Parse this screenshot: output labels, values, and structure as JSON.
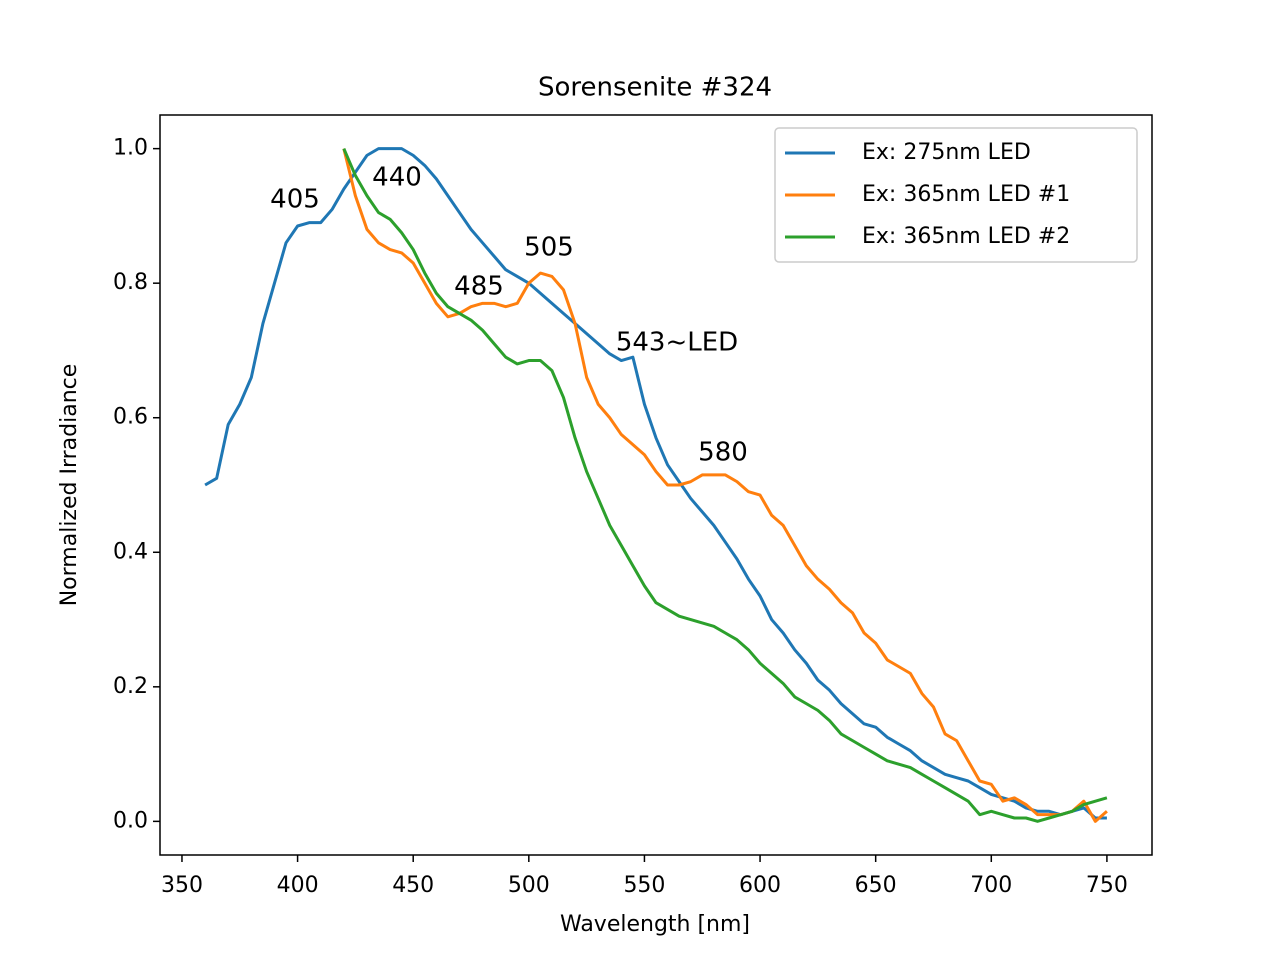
{
  "chart_data": {
    "type": "line",
    "title": "Sorensenite #324",
    "x_label": "Wavelength [nm]",
    "y_label": "Normalized Irradiance",
    "x": [
      360,
      365,
      370,
      375,
      380,
      385,
      390,
      395,
      400,
      405,
      410,
      415,
      420,
      425,
      430,
      435,
      440,
      445,
      450,
      455,
      460,
      465,
      470,
      475,
      480,
      485,
      490,
      495,
      500,
      505,
      510,
      515,
      520,
      525,
      530,
      535,
      540,
      545,
      550,
      555,
      560,
      565,
      570,
      575,
      580,
      585,
      590,
      595,
      600,
      605,
      610,
      615,
      620,
      625,
      630,
      635,
      640,
      645,
      650,
      655,
      660,
      665,
      670,
      675,
      680,
      685,
      690,
      695,
      700,
      705,
      710,
      715,
      720,
      725,
      730,
      735,
      740,
      745,
      750
    ],
    "series": [
      {
        "name": "Ex: 275nm LED",
        "color": "#1f77b4",
        "values": [
          0.5,
          0.51,
          0.59,
          0.62,
          0.66,
          0.74,
          0.8,
          0.86,
          0.885,
          0.89,
          0.89,
          0.91,
          0.94,
          0.965,
          0.99,
          1.0,
          1.0,
          1.0,
          0.99,
          0.975,
          0.955,
          0.93,
          0.905,
          0.88,
          0.86,
          0.84,
          0.82,
          0.81,
          0.8,
          0.785,
          0.77,
          0.755,
          0.74,
          0.725,
          0.71,
          0.695,
          0.685,
          0.69,
          0.62,
          0.57,
          0.53,
          0.505,
          0.48,
          0.46,
          0.44,
          0.415,
          0.39,
          0.36,
          0.335,
          0.3,
          0.28,
          0.255,
          0.235,
          0.21,
          0.195,
          0.175,
          0.16,
          0.145,
          0.14,
          0.125,
          0.115,
          0.105,
          0.09,
          0.08,
          0.07,
          0.065,
          0.06,
          0.05,
          0.04,
          0.035,
          0.03,
          0.02,
          0.015,
          0.015,
          0.01,
          0.015,
          0.02,
          0.005,
          0.005
        ]
      },
      {
        "name": "Ex: 365nm LED #1",
        "color": "#ff7f0e",
        "values": [
          null,
          null,
          null,
          null,
          null,
          null,
          null,
          null,
          null,
          null,
          null,
          null,
          1.0,
          0.93,
          0.88,
          0.86,
          0.85,
          0.845,
          0.83,
          0.8,
          0.77,
          0.75,
          0.755,
          0.765,
          0.77,
          0.77,
          0.765,
          0.77,
          0.8,
          0.815,
          0.81,
          0.79,
          0.74,
          0.66,
          0.62,
          0.6,
          0.575,
          0.56,
          0.545,
          0.52,
          0.5,
          0.5,
          0.505,
          0.515,
          0.515,
          0.515,
          0.505,
          0.49,
          0.485,
          0.455,
          0.44,
          0.41,
          0.38,
          0.36,
          0.345,
          0.325,
          0.31,
          0.28,
          0.265,
          0.24,
          0.23,
          0.22,
          0.19,
          0.17,
          0.13,
          0.12,
          0.09,
          0.06,
          0.055,
          0.03,
          0.035,
          0.025,
          0.01,
          0.01,
          0.01,
          0.015,
          0.03,
          0.0,
          0.015
        ]
      },
      {
        "name": "Ex: 365nm LED #2",
        "color": "#2ca02c",
        "values": [
          null,
          null,
          null,
          null,
          null,
          null,
          null,
          null,
          null,
          null,
          null,
          null,
          1.0,
          0.96,
          0.93,
          0.905,
          0.895,
          0.875,
          0.85,
          0.815,
          0.785,
          0.765,
          0.755,
          0.745,
          0.73,
          0.71,
          0.69,
          0.68,
          0.685,
          0.685,
          0.67,
          0.63,
          0.57,
          0.52,
          0.48,
          0.44,
          0.41,
          0.38,
          0.35,
          0.325,
          0.315,
          0.305,
          0.3,
          0.295,
          0.29,
          0.28,
          0.27,
          0.255,
          0.235,
          0.22,
          0.205,
          0.185,
          0.175,
          0.165,
          0.15,
          0.13,
          0.12,
          0.11,
          0.1,
          0.09,
          0.085,
          0.08,
          0.07,
          0.06,
          0.05,
          0.04,
          0.03,
          0.01,
          0.015,
          0.01,
          0.005,
          0.005,
          0.0,
          0.005,
          0.01,
          0.015,
          0.025,
          0.03,
          0.035
        ]
      }
    ],
    "annotations": [
      "405",
      "440",
      "485",
      "505",
      "543~LED",
      "580"
    ],
    "xlim": [
      340.5,
      769.5
    ],
    "ylim": [
      -0.05,
      1.05
    ],
    "xticks": [
      350,
      400,
      450,
      500,
      550,
      600,
      650,
      700,
      750
    ],
    "yticks": [
      {
        "value": 0.0,
        "label": "0.0"
      },
      0.2,
      0.4,
      0.6,
      0.8,
      {
        "value": 1.0,
        "label": "1.0"
      }
    ],
    "legend": "upper right"
  }
}
